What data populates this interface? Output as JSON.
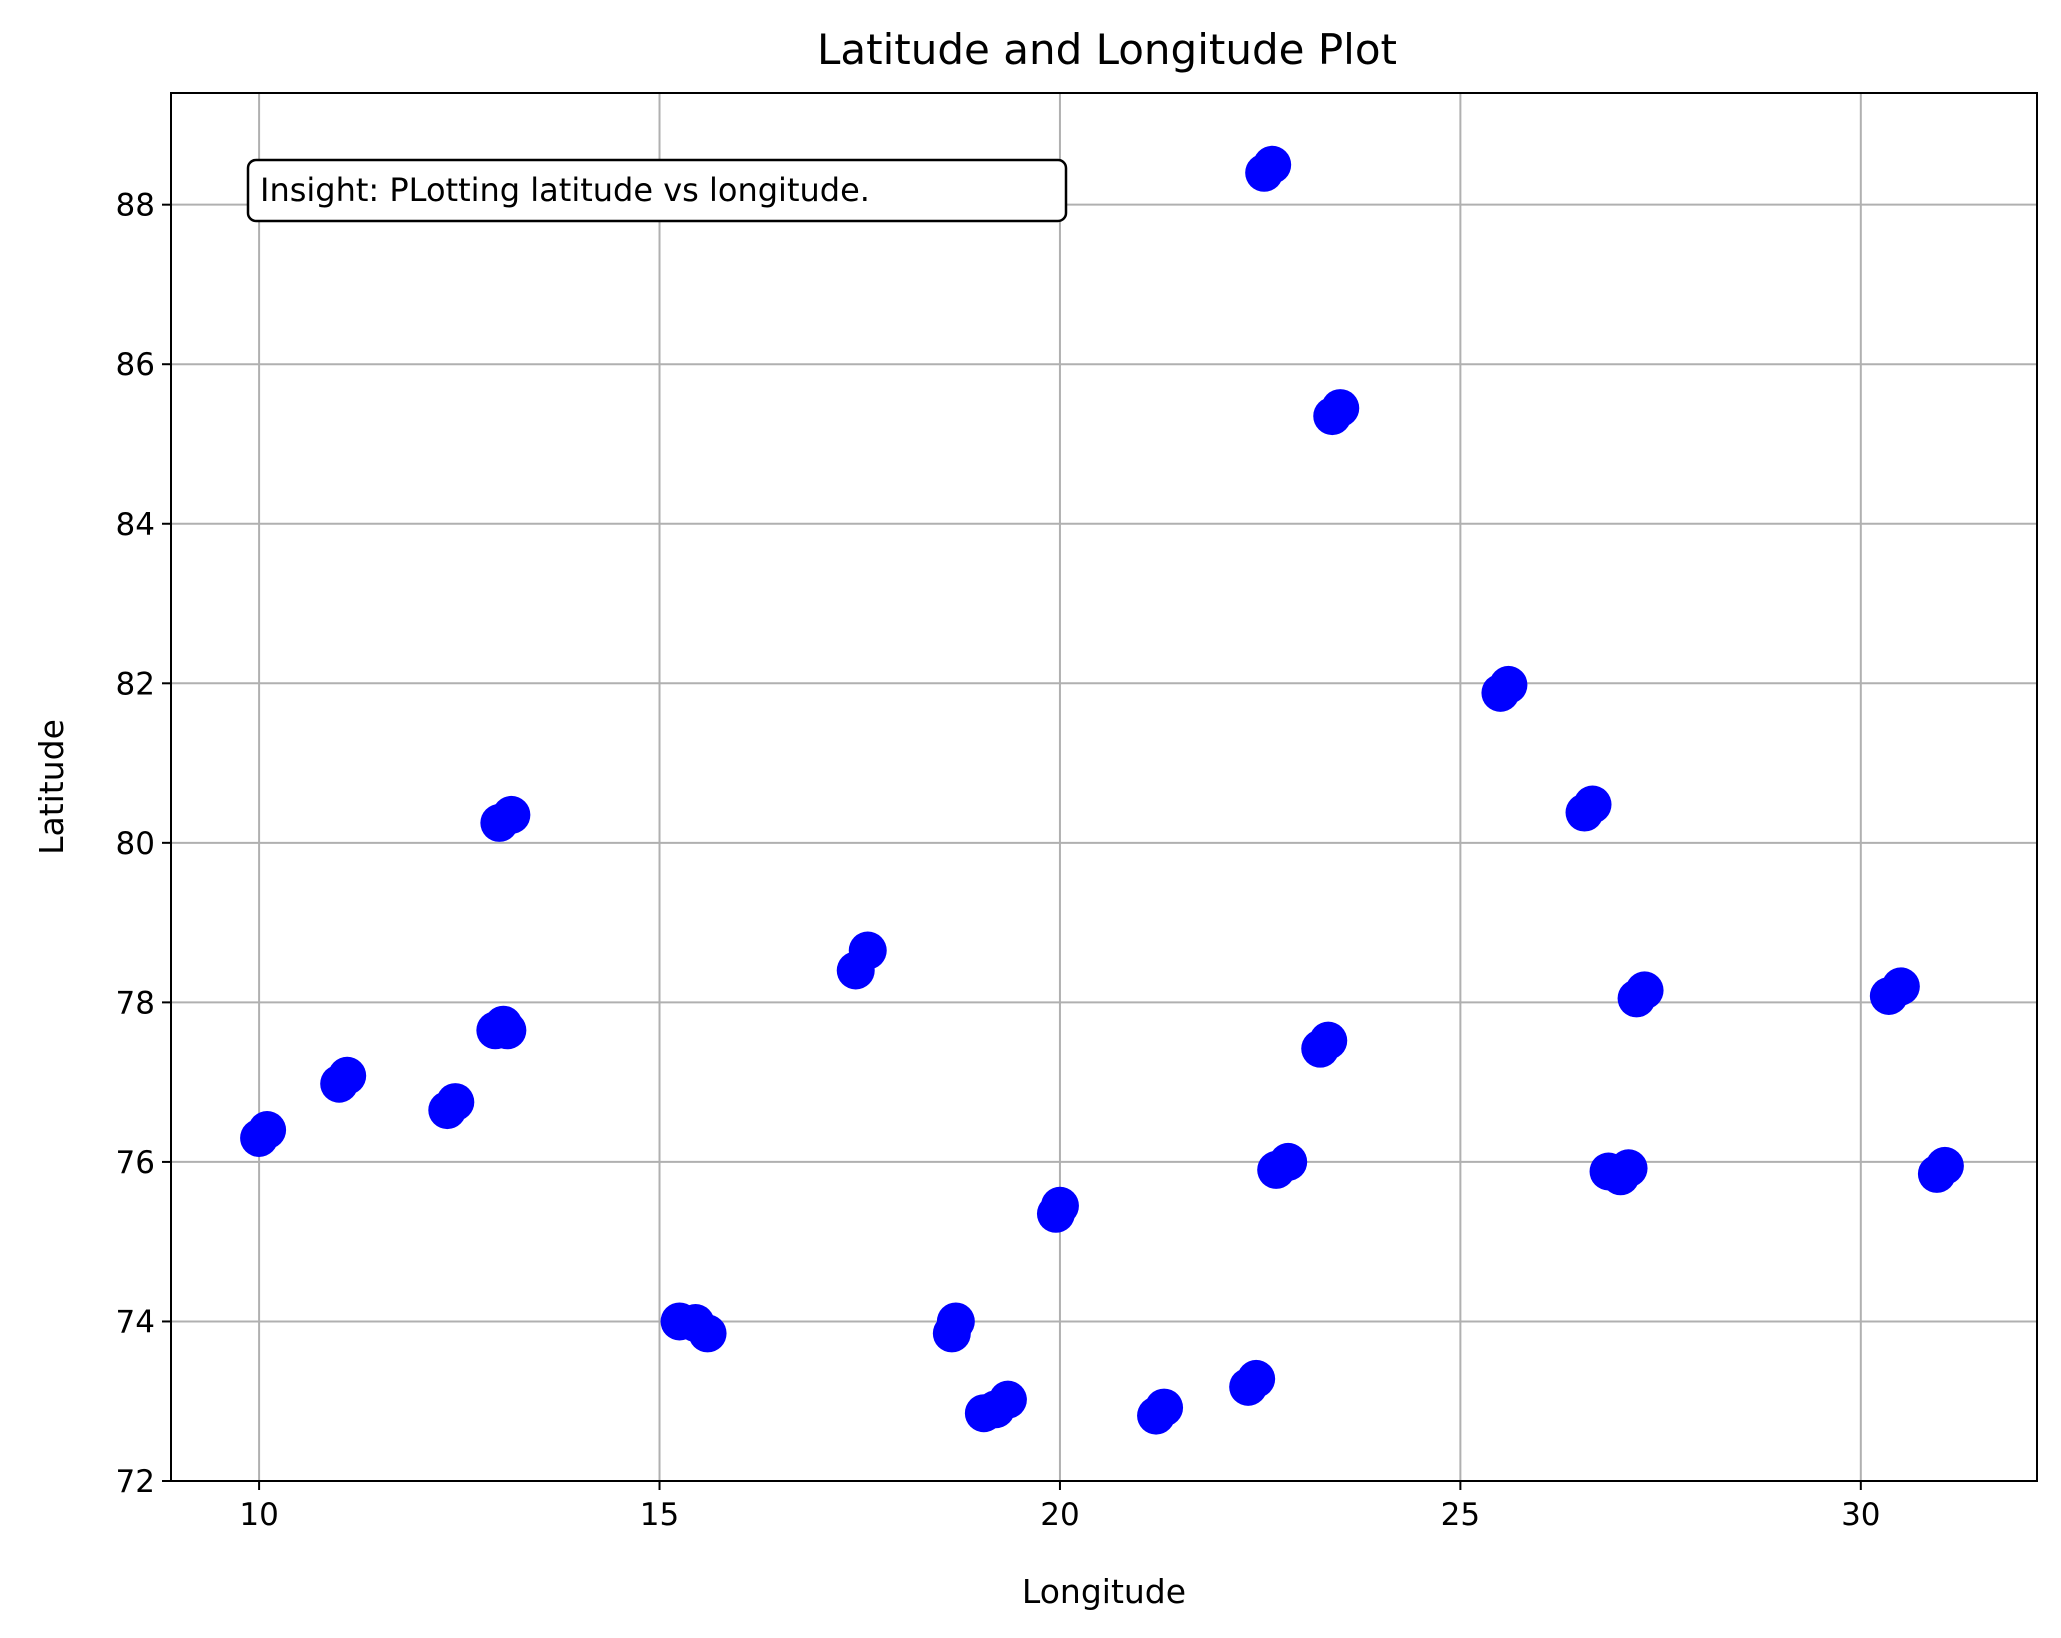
{
  "chart_data": {
    "type": "scatter",
    "title": "Latitude and Longitude Plot",
    "xlabel": "Longitude",
    "ylabel": "Latitude",
    "xlim": [
      8.9,
      32.2
    ],
    "ylim": [
      72.0,
      89.4
    ],
    "xticks": [
      10,
      15,
      20,
      25,
      30
    ],
    "yticks": [
      72,
      74,
      76,
      78,
      80,
      82,
      84,
      86,
      88
    ],
    "grid": true,
    "marker_color": "#0000ff",
    "annotation": "Insight: PLotting latitude vs longitude.",
    "clusters": [
      {
        "x": 10.0,
        "y": 76.3
      },
      {
        "x": 10.1,
        "y": 76.4
      },
      {
        "x": 11.0,
        "y": 76.98
      },
      {
        "x": 11.1,
        "y": 77.08
      },
      {
        "x": 12.35,
        "y": 76.65
      },
      {
        "x": 12.45,
        "y": 76.75
      },
      {
        "x": 12.95,
        "y": 77.65
      },
      {
        "x": 13.05,
        "y": 77.72
      },
      {
        "x": 13.1,
        "y": 77.65
      },
      {
        "x": 13.0,
        "y": 80.25
      },
      {
        "x": 13.15,
        "y": 80.35
      },
      {
        "x": 15.25,
        "y": 74.0
      },
      {
        "x": 15.45,
        "y": 73.98
      },
      {
        "x": 15.6,
        "y": 73.85
      },
      {
        "x": 17.45,
        "y": 78.4
      },
      {
        "x": 17.6,
        "y": 78.65
      },
      {
        "x": 18.65,
        "y": 73.85
      },
      {
        "x": 18.7,
        "y": 74.0
      },
      {
        "x": 19.05,
        "y": 72.85
      },
      {
        "x": 19.2,
        "y": 72.9
      },
      {
        "x": 19.35,
        "y": 73.02
      },
      {
        "x": 19.95,
        "y": 75.35
      },
      {
        "x": 20.0,
        "y": 75.45
      },
      {
        "x": 21.2,
        "y": 72.82
      },
      {
        "x": 21.3,
        "y": 72.92
      },
      {
        "x": 22.35,
        "y": 73.18
      },
      {
        "x": 22.45,
        "y": 73.28
      },
      {
        "x": 22.55,
        "y": 88.4
      },
      {
        "x": 22.65,
        "y": 88.5
      },
      {
        "x": 22.7,
        "y": 75.9
      },
      {
        "x": 22.85,
        "y": 76.0
      },
      {
        "x": 23.25,
        "y": 77.42
      },
      {
        "x": 23.35,
        "y": 77.52
      },
      {
        "x": 23.4,
        "y": 85.35
      },
      {
        "x": 23.5,
        "y": 85.45
      },
      {
        "x": 25.5,
        "y": 81.88
      },
      {
        "x": 25.6,
        "y": 81.98
      },
      {
        "x": 26.55,
        "y": 80.38
      },
      {
        "x": 26.65,
        "y": 80.48
      },
      {
        "x": 26.85,
        "y": 75.88
      },
      {
        "x": 27.0,
        "y": 75.82
      },
      {
        "x": 27.1,
        "y": 75.92
      },
      {
        "x": 27.2,
        "y": 78.05
      },
      {
        "x": 27.3,
        "y": 78.15
      },
      {
        "x": 30.35,
        "y": 78.08
      },
      {
        "x": 30.5,
        "y": 78.2
      },
      {
        "x": 30.95,
        "y": 75.85
      },
      {
        "x": 31.05,
        "y": 75.95
      }
    ]
  }
}
